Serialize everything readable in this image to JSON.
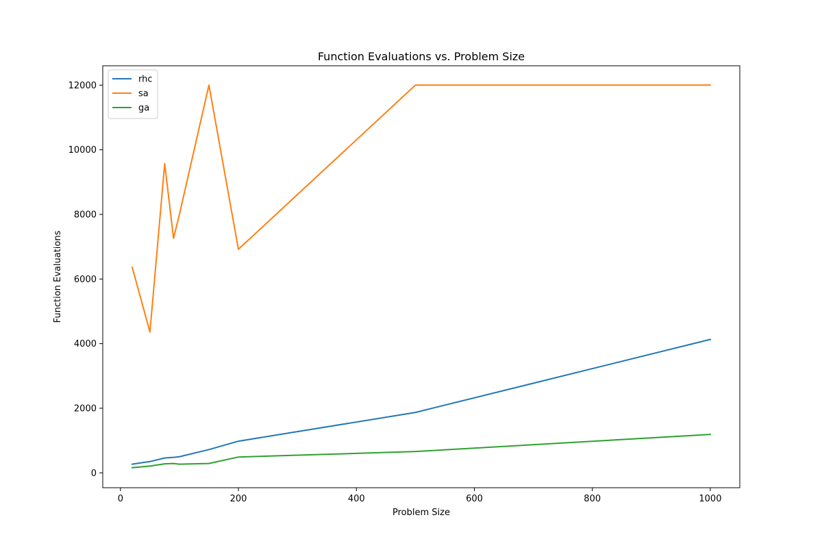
{
  "chart_data": {
    "type": "line",
    "title": "Function Evaluations vs. Problem Size",
    "xlabel": "Problem Size",
    "ylabel": "Function Evaluations",
    "xlim": [
      -30,
      1050
    ],
    "ylim": [
      -460,
      12600
    ],
    "xticks": [
      0,
      200,
      400,
      600,
      800,
      1000
    ],
    "yticks": [
      0,
      2000,
      4000,
      6000,
      8000,
      10000,
      12000
    ],
    "grid": false,
    "legend_position": "top-left",
    "series": [
      {
        "name": "rhc",
        "color": "#1f77b4",
        "x": [
          20,
          50,
          75,
          90,
          100,
          150,
          200,
          500,
          1000
        ],
        "y": [
          270,
          350,
          460,
          480,
          500,
          720,
          980,
          1870,
          4130
        ]
      },
      {
        "name": "sa",
        "color": "#ff7f0e",
        "x": [
          20,
          50,
          75,
          90,
          100,
          150,
          200,
          500,
          1000
        ],
        "y": [
          6360,
          4360,
          9570,
          7260,
          8000,
          12000,
          6920,
          12000,
          12000
        ]
      },
      {
        "name": "ga",
        "color": "#2ca02c",
        "x": [
          20,
          50,
          75,
          90,
          100,
          150,
          200,
          500,
          1000
        ],
        "y": [
          160,
          210,
          280,
          290,
          270,
          290,
          490,
          660,
          1190
        ]
      }
    ]
  }
}
